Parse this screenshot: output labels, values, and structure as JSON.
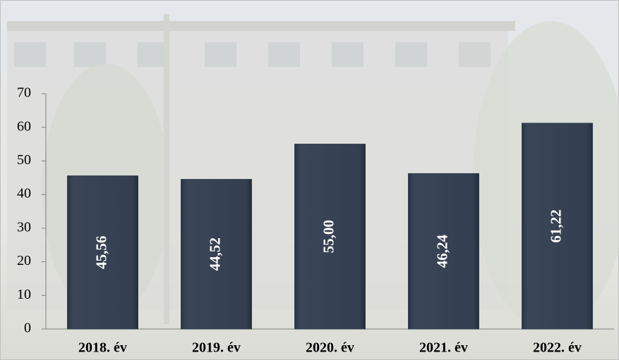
{
  "chart_data": {
    "type": "bar",
    "categories": [
      "2018. év",
      "2019. év",
      "2020. év",
      "2021. év",
      "2022. év"
    ],
    "values": [
      45.56,
      44.52,
      55.0,
      46.24,
      61.22
    ],
    "value_labels": [
      "45,56",
      "44,52",
      "55,00",
      "46,24",
      "61,22"
    ],
    "color": "#333f50",
    "ylim": [
      0,
      70
    ],
    "yticks": [
      0,
      10,
      20,
      30,
      40,
      50,
      60,
      70
    ],
    "grid": false
  }
}
